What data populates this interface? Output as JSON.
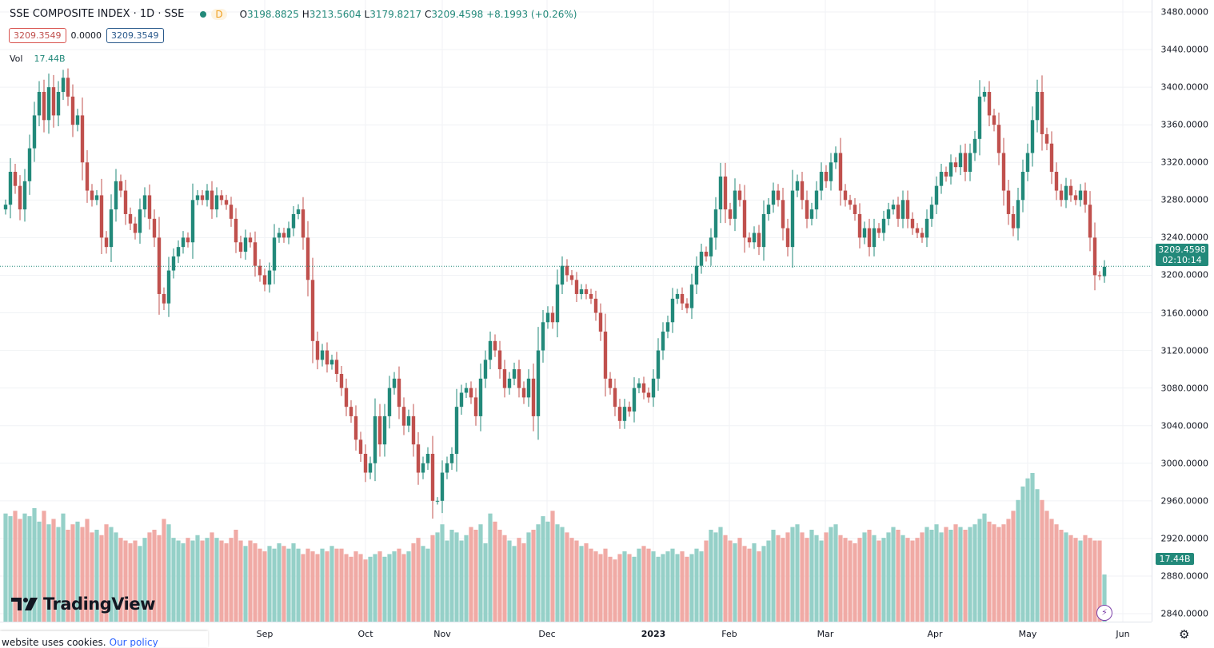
{
  "header": {
    "title": "SSE COMPOSITE INDEX · 1D · SSE",
    "market_badge": "D",
    "open_key": "O",
    "open": "3198.8825",
    "high_key": "H",
    "high": "3213.5604",
    "low_key": "L",
    "low": "3179.8217",
    "close_key": "C",
    "close": "3209.4598",
    "change": "+8.1993 (+0.26%)",
    "bid": "3209.3549",
    "spread": "0.0000",
    "ask": "3209.3549",
    "vol_label": "Vol",
    "vol_value": "17.44B"
  },
  "price_axis": {
    "ticks": [
      "3480.0000",
      "3440.0000",
      "3400.0000",
      "3360.0000",
      "3320.0000",
      "3280.0000",
      "3240.0000",
      "3200.0000",
      "3160.0000",
      "3120.0000",
      "3080.0000",
      "3040.0000",
      "3000.0000",
      "2960.0000",
      "2920.0000",
      "2880.0000",
      "2840.0000"
    ],
    "current_price": "3209.4598",
    "countdown": "02:10:14",
    "volume_label": "17.44B"
  },
  "time_axis": {
    "labels": [
      {
        "text": "Sep",
        "bold": false
      },
      {
        "text": "Oct",
        "bold": false
      },
      {
        "text": "Nov",
        "bold": false
      },
      {
        "text": "Dec",
        "bold": false
      },
      {
        "text": "2023",
        "bold": true
      },
      {
        "text": "Feb",
        "bold": false
      },
      {
        "text": "Mar",
        "bold": false
      },
      {
        "text": "Apr",
        "bold": false
      },
      {
        "text": "May",
        "bold": false
      },
      {
        "text": "Jun",
        "bold": false
      }
    ]
  },
  "branding": {
    "logo_text": "TradingView"
  },
  "cookie_banner": {
    "text": "website uses cookies.",
    "link": "Our policy"
  },
  "colors": {
    "up": "#22897a",
    "down": "#c0504d",
    "vol_up": "#95d0c8",
    "vol_down": "#f0aaa5"
  },
  "chart_data": {
    "type": "candlestick",
    "title": "SSE COMPOSITE INDEX · 1D · SSE",
    "ylim": [
      2840,
      3480
    ],
    "volume_unit": "B",
    "close": [
      3275,
      3310,
      3295,
      3270,
      3300,
      3335,
      3370,
      3395,
      3365,
      3400,
      3370,
      3395,
      3410,
      3390,
      3360,
      3370,
      3320,
      3290,
      3280,
      3285,
      3240,
      3230,
      3270,
      3300,
      3290,
      3265,
      3255,
      3245,
      3270,
      3285,
      3260,
      3240,
      3180,
      3170,
      3205,
      3220,
      3230,
      3240,
      3235,
      3280,
      3285,
      3280,
      3290,
      3270,
      3285,
      3280,
      3275,
      3260,
      3235,
      3225,
      3240,
      3235,
      3210,
      3200,
      3190,
      3205,
      3240,
      3245,
      3240,
      3250,
      3265,
      3270,
      3240,
      3195,
      3130,
      3110,
      3120,
      3105,
      3110,
      3095,
      3080,
      3060,
      3050,
      3025,
      3010,
      2990,
      3000,
      3050,
      3020,
      3050,
      3080,
      3090,
      3060,
      3040,
      3050,
      3020,
      2990,
      3000,
      3010,
      2960,
      2960,
      2990,
      3000,
      3010,
      3060,
      3075,
      3080,
      3070,
      3050,
      3090,
      3110,
      3130,
      3120,
      3100,
      3080,
      3090,
      3100,
      3080,
      3070,
      3090,
      3050,
      3120,
      3150,
      3160,
      3150,
      3190,
      3210,
      3200,
      3195,
      3180,
      3185,
      3180,
      3175,
      3160,
      3140,
      3090,
      3080,
      3060,
      3045,
      3060,
      3055,
      3080,
      3085,
      3075,
      3070,
      3090,
      3120,
      3140,
      3150,
      3175,
      3180,
      3170,
      3165,
      3190,
      3210,
      3225,
      3220,
      3240,
      3270,
      3305,
      3270,
      3260,
      3290,
      3280,
      3240,
      3235,
      3245,
      3230,
      3265,
      3275,
      3290,
      3280,
      3250,
      3230,
      3290,
      3300,
      3280,
      3260,
      3270,
      3290,
      3310,
      3300,
      3320,
      3330,
      3290,
      3280,
      3275,
      3265,
      3240,
      3250,
      3230,
      3250,
      3245,
      3260,
      3270,
      3275,
      3260,
      3280,
      3260,
      3250,
      3245,
      3240,
      3260,
      3275,
      3295,
      3310,
      3305,
      3320,
      3315,
      3330,
      3310,
      3330,
      3345,
      3390,
      3395,
      3370,
      3360,
      3330,
      3290,
      3265,
      3250,
      3280,
      3310,
      3330,
      3365,
      3395,
      3350,
      3340,
      3310,
      3290,
      3280,
      3295,
      3285,
      3280,
      3290,
      3275,
      3240,
      3200,
      3199,
      3209
    ],
    "volume": [
      40,
      39,
      41,
      38,
      40,
      39,
      42,
      37,
      41,
      36,
      38,
      35,
      40,
      34,
      36,
      37,
      35,
      38,
      33,
      34,
      32,
      36,
      35,
      33,
      31,
      30,
      29,
      30,
      28,
      31,
      33,
      34,
      32,
      38,
      36,
      31,
      30,
      29,
      31,
      30,
      32,
      30,
      31,
      33,
      31,
      30,
      29,
      31,
      34,
      30,
      28,
      30,
      29,
      27,
      26,
      28,
      27,
      29,
      28,
      27,
      29,
      27,
      25,
      27,
      26,
      25,
      27,
      26,
      28,
      27,
      27,
      25,
      24,
      26,
      25,
      23,
      24,
      25,
      26,
      24,
      25,
      26,
      27,
      25,
      26,
      29,
      31,
      28,
      27,
      32,
      33,
      36,
      30,
      34,
      33,
      30,
      32,
      35,
      34,
      36,
      29,
      40,
      37,
      34,
      32,
      30,
      28,
      31,
      29,
      33,
      34,
      36,
      39,
      37,
      41,
      36,
      35,
      33,
      31,
      30,
      28,
      29,
      27,
      26,
      25,
      27,
      24,
      23,
      25,
      26,
      25,
      24,
      27,
      28,
      27,
      26,
      24,
      25,
      26,
      27,
      25,
      26,
      24,
      25,
      27,
      26,
      30,
      34,
      33,
      35,
      32,
      30,
      29,
      31,
      28,
      27,
      29,
      26,
      28,
      30,
      34,
      32,
      31,
      33,
      35,
      36,
      33,
      31,
      34,
      32,
      30,
      33,
      35,
      36,
      32,
      31,
      30,
      29,
      31,
      33,
      34,
      32,
      30,
      31,
      33,
      35,
      34,
      32,
      31,
      30,
      31,
      33,
      35,
      34,
      36,
      33,
      35,
      34,
      36,
      35,
      34,
      35,
      36,
      38,
      40,
      37,
      36,
      35,
      36,
      38,
      41,
      45,
      50,
      53,
      55,
      49,
      45,
      41,
      38,
      36,
      34,
      33,
      32,
      31,
      30,
      32,
      31,
      30,
      30,
      17.44
    ]
  }
}
